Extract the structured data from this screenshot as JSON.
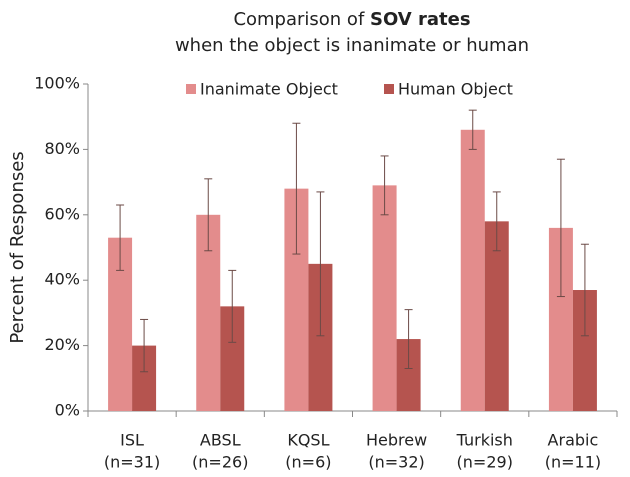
{
  "chart_data": {
    "type": "bar",
    "title": [
      [
        "Comparison of ",
        "SOV rates"
      ],
      [
        "when the object is inanimate or human"
      ]
    ],
    "y_label": "Percent of Responses",
    "categories": [
      [
        "ISL",
        "(n=31)"
      ],
      [
        "ABSL",
        "(n=26)"
      ],
      [
        "KQSL",
        "(n=6)"
      ],
      [
        "Hebrew",
        "(n=32)"
      ],
      [
        "Turkish",
        "(n=29)"
      ],
      [
        "Arabic",
        "(n=11)"
      ]
    ],
    "series": [
      {
        "name": "Inanimate Object",
        "color": "#e38c8c",
        "values": [
          53,
          60,
          68,
          69,
          86,
          56
        ],
        "errors": [
          10,
          11,
          20,
          9,
          6,
          21
        ]
      },
      {
        "name": "Human Object",
        "color": "#b5544f",
        "values": [
          20,
          32,
          45,
          22,
          58,
          37
        ],
        "errors": [
          8,
          11,
          22,
          9,
          9,
          14
        ]
      }
    ],
    "ylim": [
      0,
      100
    ],
    "yticks": [
      {
        "value": 0,
        "label": "0%"
      },
      {
        "value": 20,
        "label": "20%"
      },
      {
        "value": 40,
        "label": "40%"
      },
      {
        "value": 60,
        "label": "60%"
      },
      {
        "value": 80,
        "label": "80%"
      },
      {
        "value": 100,
        "label": "100%"
      }
    ],
    "grid": false,
    "legend": "top"
  }
}
